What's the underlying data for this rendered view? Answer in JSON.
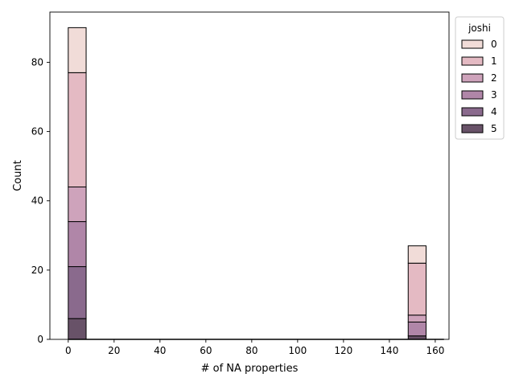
{
  "chart_data": {
    "type": "bar",
    "subtype": "stacked-histogram",
    "title": "",
    "xlabel": "# of NA properties",
    "ylabel": "Count",
    "xlim": [
      -8,
      166
    ],
    "ylim": [
      0,
      94.5
    ],
    "xticks": [
      0,
      20,
      40,
      60,
      80,
      100,
      120,
      140,
      160
    ],
    "yticks": [
      0,
      20,
      40,
      60,
      80
    ],
    "grid": false,
    "bin_width": 7.8,
    "bin_edges": [
      0,
      7.8,
      15.6,
      23.4,
      31.2,
      39,
      46.8,
      54.6,
      62.4,
      70.2,
      78,
      85.8,
      93.6,
      101.4,
      109.2,
      117,
      124.8,
      132.6,
      140.4,
      148.2,
      156
    ],
    "legend": {
      "title": "joshi",
      "position": "top-right outside"
    },
    "series": [
      {
        "name": "5",
        "color": "#685268",
        "values": [
          6,
          0,
          0,
          0,
          0,
          0,
          0,
          0,
          0,
          0,
          0,
          0,
          0,
          0,
          0,
          0,
          0,
          0,
          0,
          1
        ]
      },
      {
        "name": "4",
        "color": "#8a6a8d",
        "values": [
          15,
          0,
          0,
          0,
          0,
          0,
          0,
          0,
          0,
          0,
          0,
          0,
          0,
          0,
          0,
          0,
          0,
          0,
          0,
          0
        ]
      },
      {
        "name": "3",
        "color": "#b086a8",
        "values": [
          13,
          0,
          0,
          0,
          0,
          0,
          0,
          0,
          0,
          0,
          0,
          0,
          0,
          0,
          0,
          0,
          0,
          0,
          0,
          4
        ]
      },
      {
        "name": "2",
        "color": "#cea3bb",
        "values": [
          10,
          0,
          0,
          0,
          0,
          0,
          0,
          0,
          0,
          0,
          0,
          0,
          0,
          0,
          0,
          0,
          0,
          0,
          0,
          2
        ]
      },
      {
        "name": "1",
        "color": "#e4bac3",
        "values": [
          33,
          0,
          0,
          0,
          0,
          0,
          0,
          0,
          0,
          0,
          0,
          0,
          0,
          0,
          0,
          0,
          0,
          0,
          0,
          15
        ]
      },
      {
        "name": "0",
        "color": "#f1dcd8",
        "values": [
          13,
          0,
          0,
          0,
          0,
          0,
          0,
          0,
          0,
          0,
          0,
          0,
          0,
          0,
          0,
          0,
          0,
          0,
          0,
          5
        ]
      }
    ],
    "legend_order": [
      "0",
      "1",
      "2",
      "3",
      "4",
      "5"
    ]
  }
}
